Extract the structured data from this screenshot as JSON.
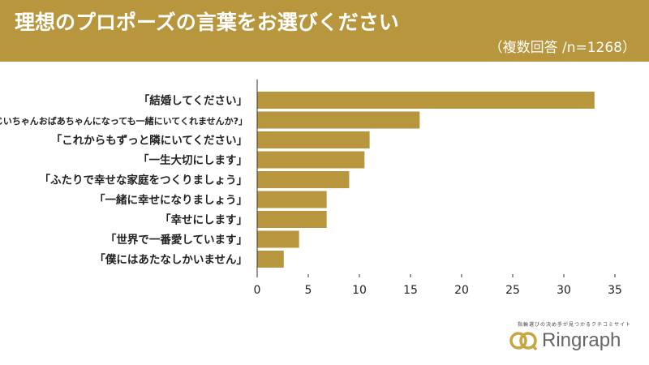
{
  "header": {
    "title": "理想のプロポーズの言葉をお選びください",
    "subtitle": "（複数回答 /n=1268）"
  },
  "chart_data": {
    "type": "bar",
    "orientation": "horizontal",
    "categories": [
      "「結婚してください」",
      "「おじいちゃんおばあちゃんになっても一緒にいてくれませんか?」",
      "「これからもずっと隣にいてください」",
      "「一生大切にします」",
      "「ふたりで幸せな家庭をつくりましょう」",
      "「一緒に幸せになりましょう」",
      "「幸せにします」",
      "「世界で一番愛しています」",
      "「僕にはあたなしかいません」"
    ],
    "values": [
      33.0,
      15.9,
      11.0,
      10.5,
      9.0,
      6.8,
      6.8,
      4.1,
      2.6
    ],
    "xlim": [
      0,
      35
    ],
    "xticks": [
      0,
      5,
      10,
      15,
      20,
      25,
      30,
      35
    ],
    "grid": false,
    "bar_color": "#b8963d"
  },
  "logo": {
    "tagline": "指輪選びの決め手が見つかるクチコミサイト",
    "name": "Ringraph",
    "color": "#c9a540"
  }
}
